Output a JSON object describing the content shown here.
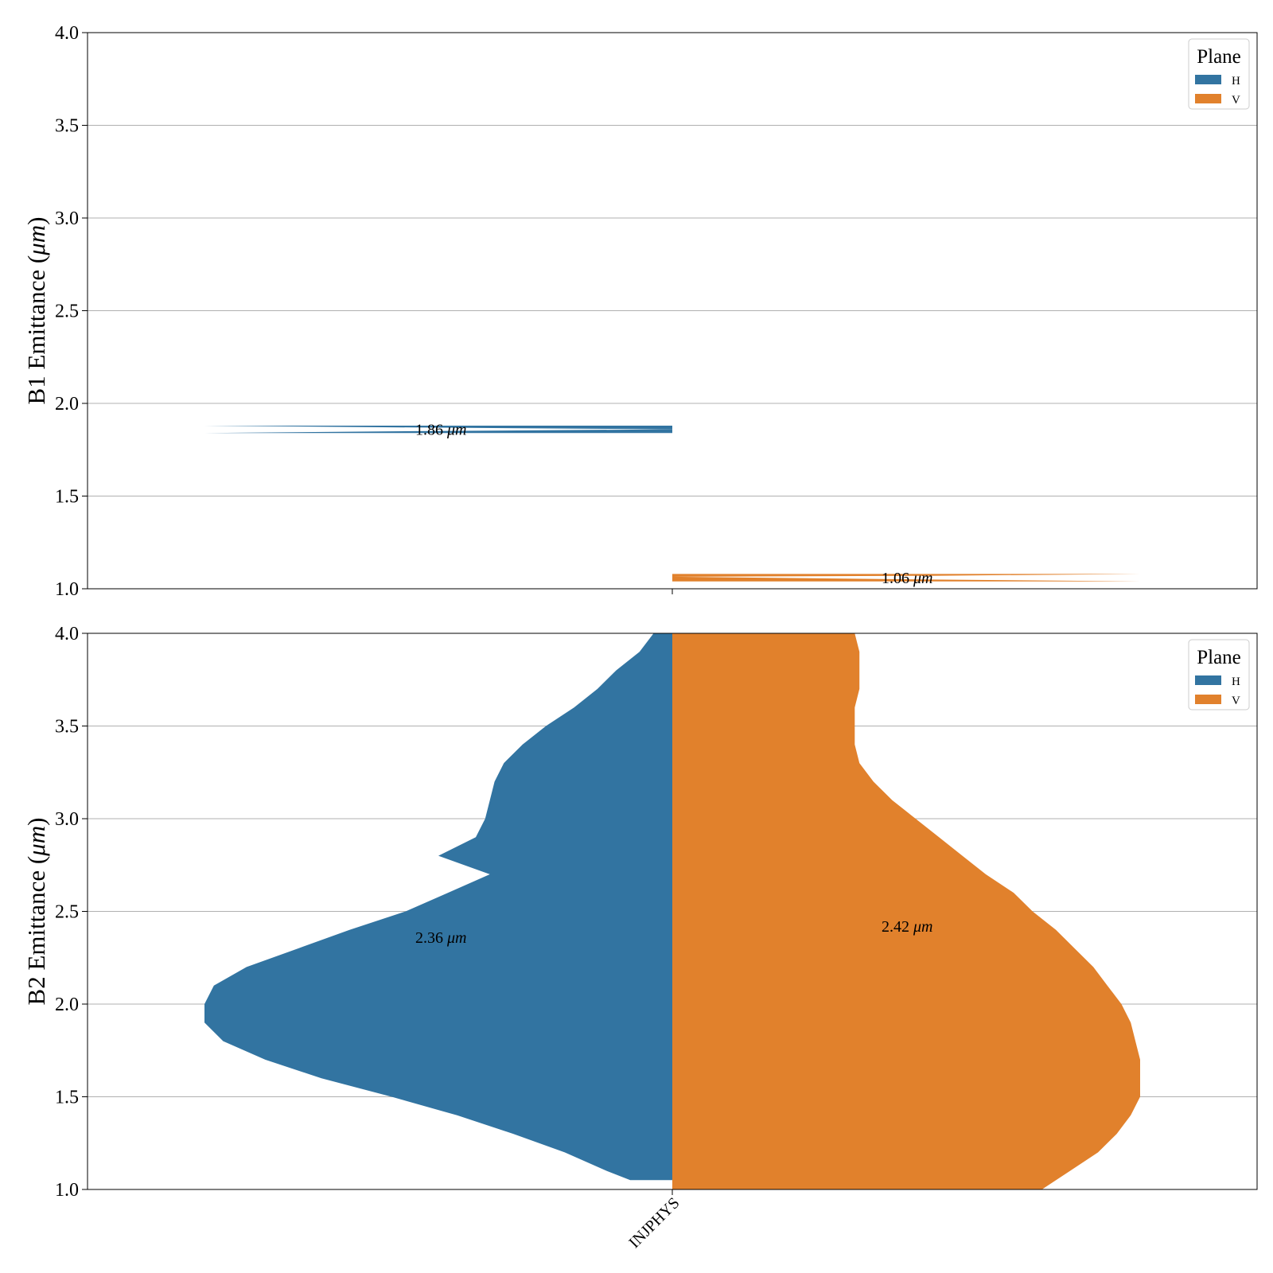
{
  "chart_data": [
    {
      "type": "violin",
      "ylabel_prefix": "B1 Emittance (",
      "ylabel_unit": "μm",
      "ylabel_suffix": ")",
      "ylim": [
        1.0,
        4.0
      ],
      "yticks": [
        "1.0",
        "1.5",
        "2.0",
        "2.5",
        "3.0",
        "3.5",
        "4.0"
      ],
      "grid": "horizontal",
      "category": "INJPHYS",
      "legend": {
        "title": "Plane",
        "placement": "top-right",
        "entries": [
          "H",
          "V"
        ]
      },
      "series": [
        {
          "name": "H",
          "side": "left",
          "color": "#3274a1",
          "median": "1.86",
          "median_unit": "μm",
          "profile": [
            [
              1.84,
              0.0
            ],
            [
              1.84,
              1.0
            ],
            [
              1.85,
              0.55
            ],
            [
              1.86,
              0.0
            ],
            [
              1.87,
              0.55
            ],
            [
              1.88,
              1.0
            ],
            [
              1.88,
              0.0
            ]
          ]
        },
        {
          "name": "V",
          "side": "right",
          "color": "#e1812c",
          "median": "1.06",
          "median_unit": "μm",
          "profile": [
            [
              1.04,
              0.0
            ],
            [
              1.04,
              1.0
            ],
            [
              1.05,
              0.55
            ],
            [
              1.065,
              0.0
            ],
            [
              1.07,
              0.55
            ],
            [
              1.08,
              1.0
            ],
            [
              1.08,
              0.0
            ]
          ]
        }
      ]
    },
    {
      "type": "violin",
      "ylabel_prefix": "B2 Emittance (",
      "ylabel_unit": "μm",
      "ylabel_suffix": ")",
      "ylim": [
        1.0,
        4.0
      ],
      "yticks": [
        "1.0",
        "1.5",
        "2.0",
        "2.5",
        "3.0",
        "3.5",
        "4.0"
      ],
      "grid": "horizontal",
      "category": "INJPHYS",
      "legend": {
        "title": "Plane",
        "placement": "top-right",
        "entries": [
          "H",
          "V"
        ]
      },
      "series": [
        {
          "name": "H",
          "side": "left",
          "color": "#3274a1",
          "median": "2.36",
          "median_unit": "μm",
          "profile": [
            [
              1.05,
              0.0
            ],
            [
              1.05,
              0.09
            ],
            [
              1.1,
              0.14
            ],
            [
              1.2,
              0.23
            ],
            [
              1.3,
              0.34
            ],
            [
              1.4,
              0.46
            ],
            [
              1.5,
              0.6
            ],
            [
              1.6,
              0.75
            ],
            [
              1.7,
              0.87
            ],
            [
              1.8,
              0.96
            ],
            [
              1.9,
              1.0
            ],
            [
              2.0,
              1.0
            ],
            [
              2.1,
              0.98
            ],
            [
              2.2,
              0.91
            ],
            [
              2.3,
              0.8
            ],
            [
              2.4,
              0.69
            ],
            [
              2.5,
              0.57
            ],
            [
              2.6,
              0.48
            ],
            [
              2.7,
              0.39
            ],
            [
              2.8,
              0.5
            ],
            [
              2.9,
              0.42
            ],
            [
              3.0,
              0.4
            ],
            [
              3.1,
              0.39
            ],
            [
              3.2,
              0.38
            ],
            [
              3.3,
              0.36
            ],
            [
              3.4,
              0.32
            ],
            [
              3.5,
              0.27
            ],
            [
              3.6,
              0.21
            ],
            [
              3.7,
              0.16
            ],
            [
              3.8,
              0.12
            ],
            [
              3.9,
              0.07
            ],
            [
              4.0,
              0.04
            ],
            [
              4.0,
              0.0
            ]
          ]
        },
        {
          "name": "V",
          "side": "right",
          "color": "#e1812c",
          "median": "2.42",
          "median_unit": "μm",
          "profile": [
            [
              1.0,
              0.0
            ],
            [
              1.0,
              0.79
            ],
            [
              1.1,
              0.85
            ],
            [
              1.2,
              0.91
            ],
            [
              1.3,
              0.95
            ],
            [
              1.4,
              0.98
            ],
            [
              1.5,
              1.0
            ],
            [
              1.6,
              1.0
            ],
            [
              1.7,
              1.0
            ],
            [
              1.8,
              0.99
            ],
            [
              1.9,
              0.98
            ],
            [
              2.0,
              0.96
            ],
            [
              2.1,
              0.93
            ],
            [
              2.2,
              0.9
            ],
            [
              2.3,
              0.86
            ],
            [
              2.4,
              0.82
            ],
            [
              2.5,
              0.77
            ],
            [
              2.6,
              0.73
            ],
            [
              2.7,
              0.67
            ],
            [
              2.8,
              0.62
            ],
            [
              2.9,
              0.57
            ],
            [
              3.0,
              0.52
            ],
            [
              3.1,
              0.47
            ],
            [
              3.2,
              0.43
            ],
            [
              3.3,
              0.4
            ],
            [
              3.4,
              0.39
            ],
            [
              3.5,
              0.39
            ],
            [
              3.6,
              0.39
            ],
            [
              3.7,
              0.4
            ],
            [
              3.8,
              0.4
            ],
            [
              3.9,
              0.4
            ],
            [
              4.0,
              0.39
            ],
            [
              4.0,
              0.0
            ]
          ]
        }
      ]
    }
  ]
}
